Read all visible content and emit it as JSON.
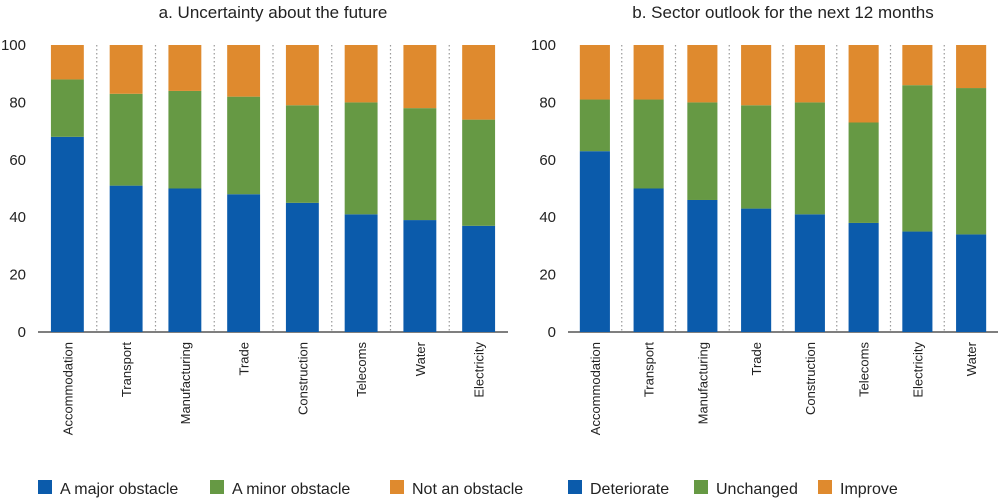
{
  "colors": {
    "major": "#0b5bab",
    "minor": "#669944",
    "none": "#df8a2e",
    "grid": "#999999",
    "axis": "#333333"
  },
  "chart_data": [
    {
      "type": "bar",
      "stacked": true,
      "title": "a. Uncertainty about the future",
      "categories": [
        "Accommodation",
        "Transport",
        "Manufacturing",
        "Trade",
        "Construction",
        "Telecoms",
        "Water",
        "Electricity"
      ],
      "ylim": [
        0,
        100
      ],
      "yticks": [
        0,
        20,
        40,
        60,
        80,
        100
      ],
      "series": [
        {
          "name": "A major obstacle",
          "color": "#0b5bab",
          "values": [
            68,
            51,
            50,
            48,
            45,
            41,
            39,
            37
          ]
        },
        {
          "name": "A minor obstacle",
          "color": "#669944",
          "values": [
            20,
            32,
            34,
            34,
            34,
            39,
            39,
            37
          ]
        },
        {
          "name": "Not an obstacle",
          "color": "#df8a2e",
          "values": [
            12,
            17,
            16,
            18,
            21,
            20,
            22,
            26
          ]
        }
      ]
    },
    {
      "type": "bar",
      "stacked": true,
      "title": "b. Sector outlook for the next 12 months",
      "categories": [
        "Accommodation",
        "Transport",
        "Manufacturing",
        "Trade",
        "Construction",
        "Telecoms",
        "Electricity",
        "Water"
      ],
      "ylim": [
        0,
        100
      ],
      "yticks": [
        0,
        20,
        40,
        60,
        80,
        100
      ],
      "series": [
        {
          "name": "Deteriorate",
          "color": "#0b5bab",
          "values": [
            63,
            50,
            46,
            43,
            41,
            38,
            35,
            34
          ]
        },
        {
          "name": "Unchanged",
          "color": "#669944",
          "values": [
            18,
            31,
            34,
            36,
            39,
            35,
            51,
            51
          ]
        },
        {
          "name": "Improve",
          "color": "#df8a2e",
          "values": [
            19,
            19,
            20,
            21,
            20,
            27,
            14,
            15
          ]
        }
      ]
    }
  ]
}
